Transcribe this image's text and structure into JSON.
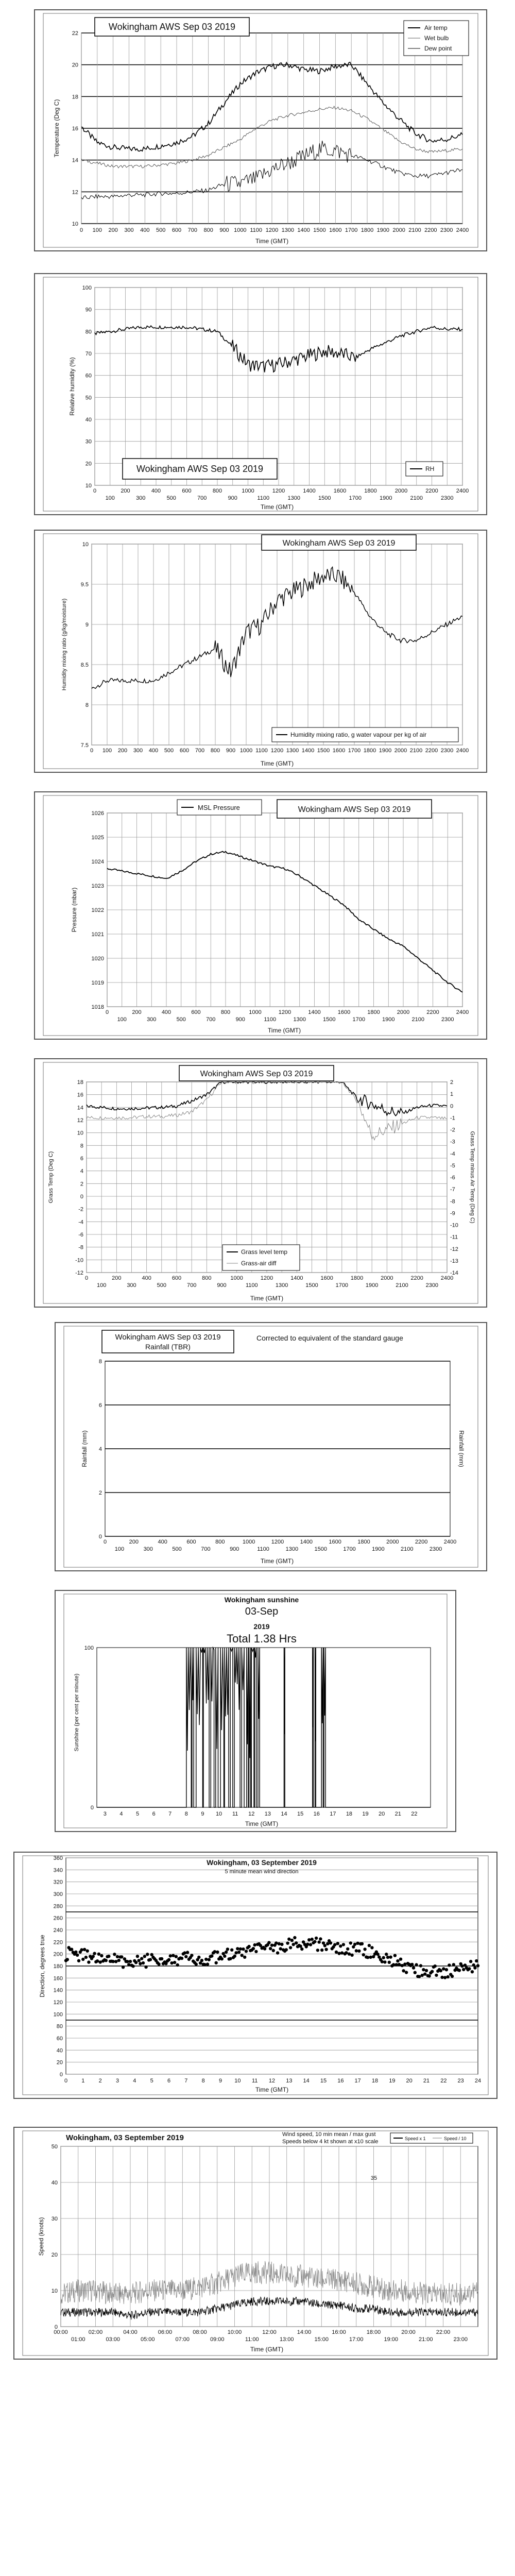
{
  "charts": [
    {
      "title": "Wokingham AWS Sep 03 2019",
      "xlabel": "Time (GMT)",
      "ylabel": "Temperature (Deg C)",
      "xticks": [
        "0",
        "100",
        "200",
        "300",
        "400",
        "500",
        "600",
        "700",
        "800",
        "900",
        "1000",
        "1100",
        "1200",
        "1300",
        "1400",
        "1500",
        "1600",
        "1700",
        "1800",
        "1900",
        "2000",
        "2100",
        "2200",
        "2300",
        "2400"
      ],
      "yticks": [
        "10",
        "12",
        "14",
        "16",
        "18",
        "20",
        "22"
      ],
      "legend": [
        "Air temp",
        "Wet bulb",
        "Dew point"
      ]
    },
    {
      "title": "Wokingham AWS Sep 03 2019",
      "xlabel": "Time (GMT)",
      "ylabel": "Relative humidity (%)",
      "xticks_top": [
        "0",
        "200",
        "400",
        "600",
        "800",
        "1000",
        "1200",
        "1400",
        "1600",
        "1800",
        "2000",
        "2200",
        "2400"
      ],
      "xticks_bottom": [
        "100",
        "300",
        "500",
        "700",
        "900",
        "1100",
        "1300",
        "1500",
        "1700",
        "1900",
        "2100",
        "2300"
      ],
      "yticks": [
        "10",
        "20",
        "30",
        "40",
        "50",
        "60",
        "70",
        "80",
        "90",
        "100"
      ],
      "legend": [
        "RH"
      ]
    },
    {
      "title": "Wokingham AWS Sep 03 2019",
      "xlabel": "Time (GMT)",
      "ylabel": "Humidity mixing ratio (g/kg/moisture)",
      "xticks": [
        "0",
        "100",
        "200",
        "300",
        "400",
        "500",
        "600",
        "700",
        "800",
        "900",
        "1000",
        "1100",
        "1200",
        "1300",
        "1400",
        "1500",
        "1600",
        "1700",
        "1800",
        "1900",
        "2000",
        "2100",
        "2200",
        "2300",
        "2400"
      ],
      "yticks": [
        "7.5",
        "8",
        "8.5",
        "9",
        "9.5",
        "10"
      ],
      "legend": [
        "Humidity mixing ratio, g water vapour per kg of air"
      ]
    },
    {
      "title": "Wokingham AWS Sep 03 2019",
      "xlabel": "Time (GMT)",
      "ylabel": "Pressure (mbar)",
      "xticks_top": [
        "0",
        "200",
        "400",
        "600",
        "800",
        "1000",
        "1200",
        "1400",
        "1600",
        "1800",
        "2000",
        "2200",
        "2400"
      ],
      "xticks_bottom": [
        "100",
        "300",
        "500",
        "700",
        "900",
        "1100",
        "1300",
        "1500",
        "1700",
        "1900",
        "2100",
        "2300"
      ],
      "yticks": [
        "1018",
        "1019",
        "1020",
        "1021",
        "1022",
        "1023",
        "1024",
        "1025",
        "1026"
      ],
      "legend": [
        "MSL Pressure"
      ]
    },
    {
      "title": "Wokingham AWS Sep 03 2019",
      "xlabel": "Time (GMT)",
      "ylabel": "Grass Temp (Deg C)",
      "ylabel2": "Grass Temp minus Air Temp (Deg C)",
      "xticks_top": [
        "0",
        "200",
        "400",
        "600",
        "800",
        "1000",
        "1200",
        "1400",
        "1600",
        "1800",
        "2000",
        "2200",
        "2400"
      ],
      "xticks_bottom": [
        "100",
        "300",
        "500",
        "700",
        "900",
        "1100",
        "1300",
        "1500",
        "1700",
        "1900",
        "2100",
        "2300"
      ],
      "yticks": [
        "-12",
        "-10",
        "-8",
        "-6",
        "-4",
        "-2",
        "0",
        "2",
        "4",
        "6",
        "8",
        "10",
        "12",
        "14",
        "16",
        "18"
      ],
      "yticks2": [
        "-14",
        "-13",
        "-12",
        "-11",
        "-10",
        "-9",
        "-8",
        "-7",
        "-6",
        "-5",
        "-4",
        "-3",
        "-2",
        "-1",
        "0",
        "1",
        "2"
      ],
      "legend": [
        "Grass level temp",
        "Grass-air diff"
      ]
    },
    {
      "title": "Wokingham AWS Sep 03 2019",
      "subtitle": "Rainfall (TBR)",
      "note": "Corrected to equivalent of the standard gauge",
      "xlabel": "Time (GMT)",
      "ylabel": "Rainfall (mm)",
      "ylabel2": "Rainfall (mm)",
      "xticks_top": [
        "0",
        "200",
        "400",
        "600",
        "800",
        "1000",
        "1200",
        "1400",
        "1600",
        "1800",
        "2000",
        "2200",
        "2400"
      ],
      "xticks_bottom": [
        "100",
        "300",
        "500",
        "700",
        "900",
        "1100",
        "1300",
        "1500",
        "1700",
        "1900",
        "2100",
        "2300"
      ],
      "yticks": [
        "0",
        "2",
        "4",
        "6",
        "8"
      ]
    },
    {
      "title": "Wokingham sunshine",
      "date": "03-Sep",
      "year": "2019",
      "total": "Total 1.38 Hrs",
      "xlabel": "Time (GMT)",
      "ylabel": "Sunshine (per cent per minute)",
      "xticks": [
        "3",
        "4",
        "5",
        "6",
        "7",
        "8",
        "9",
        "10",
        "11",
        "12",
        "13",
        "14",
        "15",
        "16",
        "17",
        "18",
        "19",
        "20",
        "21",
        "22"
      ],
      "yticks": [
        "0",
        "100"
      ]
    },
    {
      "title": "Wokingham,  03 September 2019",
      "subtitle": "5 minute mean wind direction",
      "xlabel": "Time (GMT)",
      "ylabel": "Direction, degrees true",
      "xticks": [
        "0",
        "1",
        "2",
        "3",
        "4",
        "5",
        "6",
        "7",
        "8",
        "9",
        "10",
        "11",
        "12",
        "13",
        "14",
        "15",
        "16",
        "17",
        "18",
        "19",
        "20",
        "21",
        "22",
        "23",
        "24"
      ],
      "yticks": [
        "0",
        "20",
        "40",
        "60",
        "80",
        "100",
        "120",
        "140",
        "160",
        "180",
        "200",
        "220",
        "240",
        "260",
        "280",
        "300",
        "320",
        "340",
        "360"
      ]
    },
    {
      "title": "Wokingham,  03 September 2019",
      "subtitle": "Wind speed, 10 min mean / max gust",
      "subtitle2": "Speeds below 4 kt shown at x10 scale",
      "xlabel": "Time (GMT)",
      "ylabel": "Speed (knots)",
      "xticks_top": [
        "00:00",
        "02:00",
        "04:00",
        "06:00",
        "08:00",
        "10:00",
        "12:00",
        "14:00",
        "16:00",
        "18:00",
        "20:00",
        "22:00"
      ],
      "xticks_bottom": [
        "01:00",
        "03:00",
        "05:00",
        "07:00",
        "09:00",
        "11:00",
        "13:00",
        "15:00",
        "17:00",
        "19:00",
        "21:00",
        "23:00"
      ],
      "yticks": [
        "0",
        "10",
        "20",
        "30",
        "40",
        "50"
      ],
      "legend": [
        "Speed x 1",
        "Speed / 10"
      ]
    }
  ],
  "chart_data": [
    {
      "type": "line",
      "title": "Wokingham AWS Sep 03 2019",
      "xlabel": "Time (GMT)",
      "ylabel": "Temperature (Deg C)",
      "xlim": [
        0,
        2400
      ],
      "ylim": [
        10,
        22
      ],
      "x": [
        0,
        100,
        200,
        300,
        400,
        500,
        600,
        700,
        800,
        900,
        1000,
        1100,
        1200,
        1300,
        1400,
        1500,
        1600,
        1700,
        1800,
        1900,
        2000,
        2100,
        2200,
        2300,
        2400
      ],
      "series": [
        {
          "name": "Air temp",
          "values": [
            16.1,
            15.1,
            14.8,
            14.7,
            14.7,
            14.9,
            15.1,
            15.5,
            16.3,
            17.6,
            18.8,
            19.5,
            19.9,
            20.0,
            19.7,
            19.6,
            19.9,
            20.0,
            18.8,
            17.6,
            16.6,
            15.7,
            15.2,
            15.3,
            15.6
          ]
        },
        {
          "name": "Wet bulb",
          "values": [
            14.0,
            13.8,
            13.6,
            13.6,
            13.6,
            13.7,
            13.8,
            14.0,
            14.3,
            14.8,
            15.3,
            16.0,
            16.5,
            16.8,
            17.0,
            17.2,
            17.3,
            17.1,
            16.6,
            15.9,
            15.2,
            14.7,
            14.5,
            14.6,
            14.7
          ]
        },
        {
          "name": "Dew point",
          "values": [
            11.6,
            11.7,
            11.7,
            11.8,
            11.8,
            11.9,
            11.9,
            12.0,
            12.1,
            12.5,
            12.5,
            12.8,
            13.4,
            13.8,
            14.2,
            14.7,
            14.6,
            14.3,
            14.0,
            13.6,
            13.2,
            13.0,
            13.0,
            13.2,
            13.4
          ]
        }
      ]
    },
    {
      "type": "line",
      "title": "Wokingham AWS Sep 03 2019",
      "xlabel": "Time (GMT)",
      "ylabel": "Relative humidity (%)",
      "xlim": [
        0,
        2400
      ],
      "ylim": [
        10,
        100
      ],
      "x": [
        0,
        100,
        200,
        300,
        400,
        500,
        600,
        700,
        800,
        900,
        1000,
        1100,
        1200,
        1300,
        1400,
        1500,
        1600,
        1700,
        1800,
        1900,
        2000,
        2100,
        2200,
        2300,
        2400
      ],
      "series": [
        {
          "name": "RH",
          "values": [
            79,
            80,
            81,
            82,
            82,
            82,
            82,
            81,
            80,
            73,
            65,
            64,
            65,
            67,
            69,
            71,
            70,
            68,
            72,
            75,
            78,
            80,
            82,
            81,
            81
          ]
        }
      ]
    },
    {
      "type": "line",
      "title": "Wokingham AWS Sep 03 2019",
      "xlabel": "Time (GMT)",
      "ylabel": "Humidity mixing ratio (g/kg/moisture)",
      "xlim": [
        0,
        2400
      ],
      "ylim": [
        7.5,
        10
      ],
      "x": [
        0,
        100,
        200,
        300,
        400,
        500,
        600,
        700,
        800,
        900,
        1000,
        1100,
        1200,
        1300,
        1400,
        1500,
        1600,
        1700,
        1800,
        1900,
        2000,
        2100,
        2200,
        2300,
        2400
      ],
      "series": [
        {
          "name": "Humidity mixing ratio, g water vapour per kg of air",
          "values": [
            8.2,
            8.3,
            8.3,
            8.3,
            8.3,
            8.4,
            8.5,
            8.6,
            8.7,
            8.4,
            8.9,
            9.0,
            9.3,
            9.4,
            9.5,
            9.6,
            9.6,
            9.4,
            9.1,
            8.9,
            8.8,
            8.8,
            8.9,
            9.0,
            9.1
          ]
        }
      ]
    },
    {
      "type": "line",
      "title": "Wokingham AWS Sep 03 2019",
      "xlabel": "Time (GMT)",
      "ylabel": "Pressure (mbar)",
      "xlim": [
        0,
        2400
      ],
      "ylim": [
        1018,
        1026
      ],
      "x": [
        0,
        100,
        200,
        300,
        400,
        500,
        600,
        700,
        800,
        900,
        1000,
        1100,
        1200,
        1300,
        1400,
        1500,
        1600,
        1700,
        1800,
        1900,
        2000,
        2100,
        2200,
        2300,
        2400
      ],
      "series": [
        {
          "name": "MSL Pressure",
          "values": [
            1023.7,
            1023.6,
            1023.5,
            1023.4,
            1023.3,
            1023.6,
            1024.0,
            1024.3,
            1024.4,
            1024.2,
            1024.0,
            1023.8,
            1023.7,
            1023.4,
            1023.0,
            1022.6,
            1022.2,
            1021.6,
            1021.2,
            1020.8,
            1020.5,
            1020.0,
            1019.5,
            1019.0,
            1018.6
          ]
        }
      ]
    },
    {
      "type": "line",
      "title": "Wokingham AWS Sep 03 2019",
      "xlabel": "Time (GMT)",
      "ylabel": "Grass Temp (Deg C)",
      "ylabel2": "Grass Temp minus Air Temp (Deg C)",
      "xlim": [
        0,
        2400
      ],
      "ylim": [
        -12,
        18
      ],
      "ylim2": [
        -14,
        2
      ],
      "x": [
        0,
        100,
        200,
        300,
        400,
        500,
        600,
        700,
        800,
        900,
        1000,
        1100,
        1200,
        1300,
        1400,
        1500,
        1600,
        1700,
        1800,
        1900,
        2000,
        2100,
        2200,
        2300,
        2400
      ],
      "series": [
        {
          "name": "Grass level temp",
          "values": [
            14.2,
            14.0,
            13.8,
            13.8,
            13.9,
            14.0,
            14.2,
            15.0,
            16.0,
            18,
            18,
            18,
            18,
            18,
            18,
            18,
            18,
            18,
            15.5,
            14.5,
            13.5,
            13.0,
            14.0,
            14.3,
            14.2
          ]
        },
        {
          "name": "Grass-air diff",
          "values": [
            -1.0,
            -1.0,
            -1.0,
            -1.0,
            -0.9,
            -0.9,
            -0.8,
            -0.5,
            0.5,
            2,
            2,
            2,
            2,
            2,
            2,
            2,
            2,
            2,
            0.5,
            -2.5,
            -2.0,
            -1.5,
            -1.0,
            -1.0,
            -1.1
          ]
        }
      ]
    },
    {
      "type": "bar",
      "title": "Wokingham AWS Sep 03 2019",
      "xlabel": "Time (GMT)",
      "ylabel": "Rainfall (mm)",
      "xlim": [
        0,
        2400
      ],
      "ylim": [
        0,
        8
      ],
      "x": [],
      "values": []
    },
    {
      "type": "area",
      "title": "Wokingham sunshine",
      "xlabel": "Time (GMT)",
      "ylabel": "Sunshine (per cent per minute)",
      "xlim": [
        2.5,
        23
      ],
      "ylim": [
        0,
        100
      ],
      "total_hours": 1.38,
      "bursts": [
        [
          8.0,
          8.3
        ],
        [
          8.35,
          8.45
        ],
        [
          8.6,
          9.0
        ],
        [
          9.05,
          9.4
        ],
        [
          9.5,
          9.7
        ],
        [
          9.8,
          9.95
        ],
        [
          10.1,
          10.3
        ],
        [
          10.35,
          10.6
        ],
        [
          10.7,
          10.85
        ],
        [
          10.95,
          11.3
        ],
        [
          11.4,
          11.55
        ],
        [
          11.7,
          11.8
        ],
        [
          11.85,
          11.95
        ],
        [
          12.0,
          12.15
        ],
        [
          12.2,
          12.3
        ],
        [
          12.4,
          12.5
        ],
        [
          14.0,
          14.05
        ],
        [
          15.75,
          15.8
        ],
        [
          15.9,
          15.95
        ],
        [
          16.3,
          16.4
        ],
        [
          16.45,
          16.55
        ]
      ]
    },
    {
      "type": "scatter",
      "title": "Wokingham,  03 September 2019",
      "xlabel": "Time (GMT)",
      "ylabel": "Direction, degrees true",
      "xlim": [
        0,
        24
      ],
      "ylim": [
        0,
        360
      ],
      "x": [
        0,
        1,
        2,
        3,
        4,
        5,
        6,
        7,
        8,
        9,
        10,
        11,
        12,
        13,
        14,
        15,
        16,
        17,
        18,
        19,
        20,
        21,
        22,
        23,
        24
      ],
      "values": [
        200,
        198,
        192,
        190,
        187,
        190,
        193,
        192,
        190,
        195,
        200,
        205,
        210,
        215,
        220,
        215,
        205,
        210,
        200,
        190,
        175,
        172,
        170,
        175,
        178
      ]
    },
    {
      "type": "line",
      "title": "Wokingham,  03 September 2019",
      "xlabel": "Time (GMT)",
      "ylabel": "Speed (knots)",
      "xlim": [
        0,
        24
      ],
      "ylim": [
        0,
        50
      ],
      "x": [
        0,
        1,
        2,
        3,
        4,
        5,
        6,
        7,
        8,
        9,
        10,
        11,
        12,
        13,
        14,
        15,
        16,
        17,
        18,
        19,
        20,
        21,
        22,
        23,
        24
      ],
      "series": [
        {
          "name": "Speed x 1",
          "values": [
            4,
            4,
            4,
            4,
            3,
            4,
            4,
            4,
            4,
            5,
            6,
            7,
            7,
            7,
            7,
            6,
            6,
            5,
            5,
            4,
            4,
            4,
            4,
            4,
            4
          ]
        },
        {
          "name": "Speed / 10",
          "values": [
            9,
            10,
            10,
            9,
            9,
            10,
            10,
            10,
            11,
            12,
            14,
            15,
            15,
            14,
            14,
            13,
            13,
            12,
            11,
            10,
            10,
            9,
            9,
            9,
            10
          ]
        }
      ],
      "annotation": "35"
    }
  ]
}
